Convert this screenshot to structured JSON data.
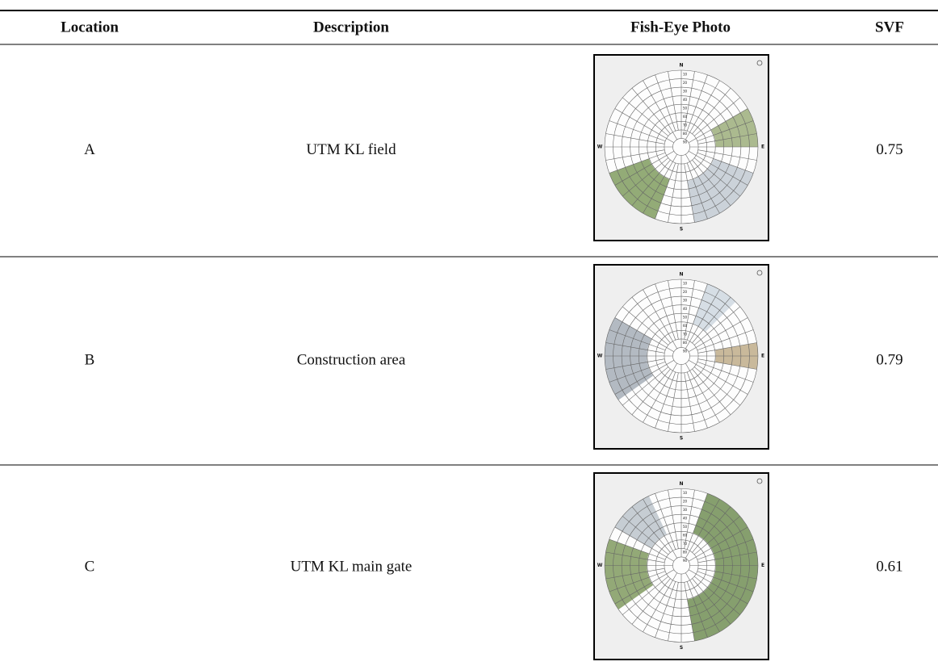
{
  "table": {
    "header": [
      "Location",
      "Description",
      "Fish-Eye Photo",
      "SVF"
    ],
    "rows": [
      [
        "A",
        "UTM KL field",
        "0.75"
      ],
      [
        "B",
        "Construction area",
        "0.79"
      ],
      [
        "C",
        "UTM KL main gate",
        "0.61"
      ]
    ]
  },
  "fisheye": {
    "compass": [
      "N",
      "E",
      "S",
      "W"
    ],
    "rings": [
      "10",
      "20",
      "30",
      "40",
      "50",
      "60",
      "70",
      "80",
      "90"
    ]
  }
}
